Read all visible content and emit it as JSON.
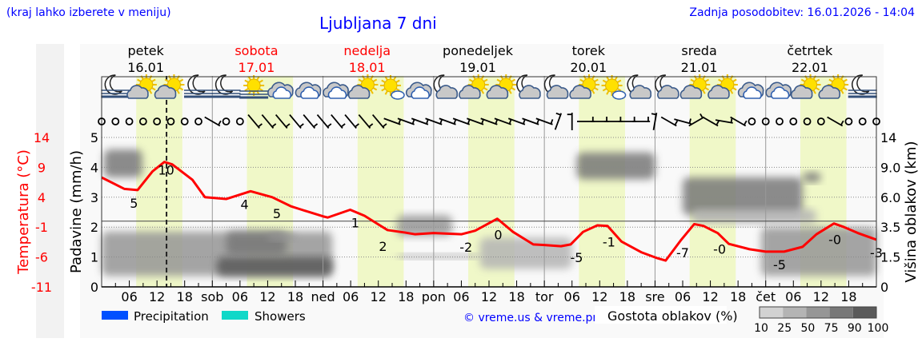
{
  "header": {
    "hint": "(kraj lahko izberete v meniju)",
    "title": "Ljubljana 7 dni",
    "updated": "Zadnja posodobitev: 16.01.2026 - 14:04"
  },
  "colors": {
    "link": "#0000ff",
    "temperature": "#ff0000",
    "daylight": "#f0f8c8",
    "precipitation": "#0050ff",
    "showers": "#10d8c8"
  },
  "chart_data": {
    "type": "meteogram",
    "days": [
      {
        "name": "petek",
        "date": "16.01",
        "abbr": "",
        "weekend": false
      },
      {
        "name": "sobota",
        "date": "17.01",
        "abbr": "sob",
        "weekend": true
      },
      {
        "name": "nedelja",
        "date": "18.01",
        "abbr": "ned",
        "weekend": true
      },
      {
        "name": "ponedeljek",
        "date": "19.01",
        "abbr": "pon",
        "weekend": false
      },
      {
        "name": "torek",
        "date": "20.01",
        "abbr": "tor",
        "weekend": false
      },
      {
        "name": "sreda",
        "date": "21.01",
        "abbr": "sre",
        "weekend": false
      },
      {
        "name": "četrtek",
        "date": "22.01",
        "abbr": "čet",
        "weekend": false
      }
    ],
    "hour_ticks": [
      "06",
      "12",
      "18"
    ],
    "daylight_hours": [
      7.5,
      17.5
    ],
    "now_hour": 14.07,
    "left_axis_temp": {
      "label": "Temperatura (°C)",
      "ticks": [
        "14",
        "9",
        "4",
        "-1",
        "-6",
        "-11"
      ],
      "range": [
        -11,
        14
      ]
    },
    "left_axis_precip": {
      "label": "Padavine (mm/h)",
      "ticks": [
        "0",
        "1",
        "2",
        "3",
        "4",
        "5"
      ],
      "range": [
        0,
        5
      ]
    },
    "right_axis_cloud": {
      "label": "Višina oblakov (km)",
      "ticks": [
        "0",
        "1.5",
        "3.5",
        "6.0",
        "9.0",
        "14"
      ],
      "tick_values": [
        0,
        1.5,
        3.5,
        6,
        9,
        14
      ]
    },
    "temperature_series": [
      [
        0,
        7.3
      ],
      [
        4.9,
        5.4
      ],
      [
        7.8,
        5.2
      ],
      [
        11,
        8.3
      ],
      [
        13.6,
        9.9
      ],
      [
        15.3,
        9.5
      ],
      [
        19.7,
        6.9
      ],
      [
        22.4,
        4.0
      ],
      [
        27,
        3.7
      ],
      [
        32.3,
        5.0
      ],
      [
        37,
        4.0
      ],
      [
        41,
        2.5
      ],
      [
        43,
        2.0
      ],
      [
        48,
        0.8
      ],
      [
        49,
        0.6
      ],
      [
        53.9,
        1.9
      ],
      [
        57,
        0.9
      ],
      [
        59.7,
        -0.4
      ],
      [
        62,
        -1.5
      ],
      [
        65.7,
        -1.9
      ],
      [
        68,
        -2.2
      ],
      [
        72,
        -2.0
      ],
      [
        75,
        -2.1
      ],
      [
        78,
        -2.2
      ],
      [
        81,
        -1.6
      ],
      [
        85.8,
        0.4
      ],
      [
        89.2,
        -1.8
      ],
      [
        93.6,
        -3.9
      ],
      [
        96,
        -4.0
      ],
      [
        99.6,
        -4.2
      ],
      [
        101.7,
        -3.9
      ],
      [
        104.4,
        -1.8
      ],
      [
        107.5,
        -0.7
      ],
      [
        109.7,
        -0.8
      ],
      [
        112.7,
        -3.4
      ],
      [
        117,
        -5.2
      ],
      [
        120.5,
        -6.2
      ],
      [
        122.3,
        -6.6
      ],
      [
        125.7,
        -3.1
      ],
      [
        128.5,
        -0.5
      ],
      [
        130.5,
        -0.8
      ],
      [
        133.6,
        -2.0
      ],
      [
        136,
        -3.8
      ],
      [
        140.5,
        -4.7
      ],
      [
        144,
        -5.1
      ],
      [
        148,
        -5.1
      ],
      [
        152,
        -4.3
      ],
      [
        155,
        -2.2
      ],
      [
        158.8,
        -0.4
      ],
      [
        161,
        -1.0
      ],
      [
        164,
        -2.0
      ],
      [
        168,
        -3.1
      ]
    ],
    "temperature_labels": [
      {
        "hour": 7,
        "text": "5"
      },
      {
        "hour": 14,
        "text": "10"
      },
      {
        "hour": 31,
        "text": "4"
      },
      {
        "hour": 38,
        "text": "5"
      },
      {
        "hour": 55,
        "text": "1"
      },
      {
        "hour": 61,
        "text": "2"
      },
      {
        "hour": 79,
        "text": "-2"
      },
      {
        "hour": 86,
        "text": "0"
      },
      {
        "hour": 103,
        "text": "-5"
      },
      {
        "hour": 110,
        "text": "-1"
      },
      {
        "hour": 126,
        "text": "-7"
      },
      {
        "hour": 134,
        "text": "-0"
      },
      {
        "hour": 147,
        "text": "-5"
      },
      {
        "hour": 159,
        "text": "-0"
      },
      {
        "hour": 168,
        "text": "-3"
      }
    ],
    "temperature_label_values": [
      5,
      10,
      4,
      5,
      1,
      2,
      -2,
      0,
      -5,
      -1,
      -7,
      0,
      -5,
      0,
      -3
    ],
    "cloud_layers": [
      {
        "hours": [
          0.5,
          8.8
        ],
        "km": [
          8,
          12
        ],
        "density": 75
      },
      {
        "hours": [
          0,
          50
        ],
        "km": [
          0.55,
          3.2
        ],
        "density": 50
      },
      {
        "hours": [
          25,
          50
        ],
        "km": [
          0.55,
          1.5
        ],
        "density": 90
      },
      {
        "hours": [
          27,
          40
        ],
        "km": [
          1.6,
          3.2
        ],
        "density": 75
      },
      {
        "hours": [
          36,
          42
        ],
        "km": [
          2.6,
          3.1
        ],
        "density": 50
      },
      {
        "hours": [
          64,
          76
        ],
        "km": [
          2.9,
          4.5
        ],
        "density": 50
      },
      {
        "hours": [
          64,
          82
        ],
        "km": [
          1.4,
          1.7
        ],
        "density": 25
      },
      {
        "hours": [
          82,
          102
        ],
        "km": [
          0.9,
          2.8
        ],
        "density": 25
      },
      {
        "hours": [
          103,
          120
        ],
        "km": [
          7.8,
          11.5
        ],
        "density": 75
      },
      {
        "hours": [
          126,
          152
        ],
        "km": [
          4.5,
          8
        ],
        "density": 75
      },
      {
        "hours": [
          128,
          155
        ],
        "km": [
          3.8,
          5
        ],
        "density": 25
      },
      {
        "hours": [
          143,
          168
        ],
        "km": [
          0.55,
          3.5
        ],
        "density": 50
      },
      {
        "hours": [
          152,
          156
        ],
        "km": [
          7.5,
          8.5
        ],
        "density": 75
      }
    ],
    "weather_icons": [
      "moon-fog",
      "sun-cloud",
      "sun-cloud",
      "moon-fog",
      "moon-fog",
      "sun-fog",
      "cloud",
      "cloud",
      "cloud",
      "sun-cloud",
      "sun-small-cloud",
      "cloud",
      "moon-cloud",
      "sun-cloud",
      "sun-cloud",
      "moon-cloud",
      "moon-cloud",
      "sun-cloud",
      "sun-small-cloud",
      "moon-cloud",
      "moon-cloud",
      "sun-cloud",
      "sun-cloud",
      "cloud",
      "cloud",
      "sun-cloud",
      "sun-cloud",
      "moon-fog"
    ],
    "wind_directions_deg": [
      null,
      null,
      null,
      null,
      null,
      null,
      null,
      null,
      300,
      null,
      null,
      320,
      320,
      320,
      320,
      320,
      320,
      320,
      320,
      320,
      320,
      290,
      290,
      290,
      290,
      290,
      290,
      290,
      290,
      290,
      290,
      290,
      290,
      200,
      180,
      270,
      270,
      270,
      270,
      270,
      190,
      300,
      285,
      240,
      300,
      280,
      300,
      null,
      null,
      null,
      null,
      null,
      null,
      300,
      null,
      null,
      null
    ],
    "zero_line_temp": 0
  },
  "legend": {
    "precipitation": "Precipitation",
    "showers": "Showers",
    "copyright": "© vreme.us & vreme.pro",
    "density_title": "Gostota oblakov (%)",
    "density_ticks": [
      "10",
      "25",
      "50",
      "75",
      "90",
      "100"
    ],
    "density_colors": [
      "#d2d2d2",
      "#b4b4b4",
      "#969696",
      "#787878",
      "#5a5a5a"
    ]
  }
}
